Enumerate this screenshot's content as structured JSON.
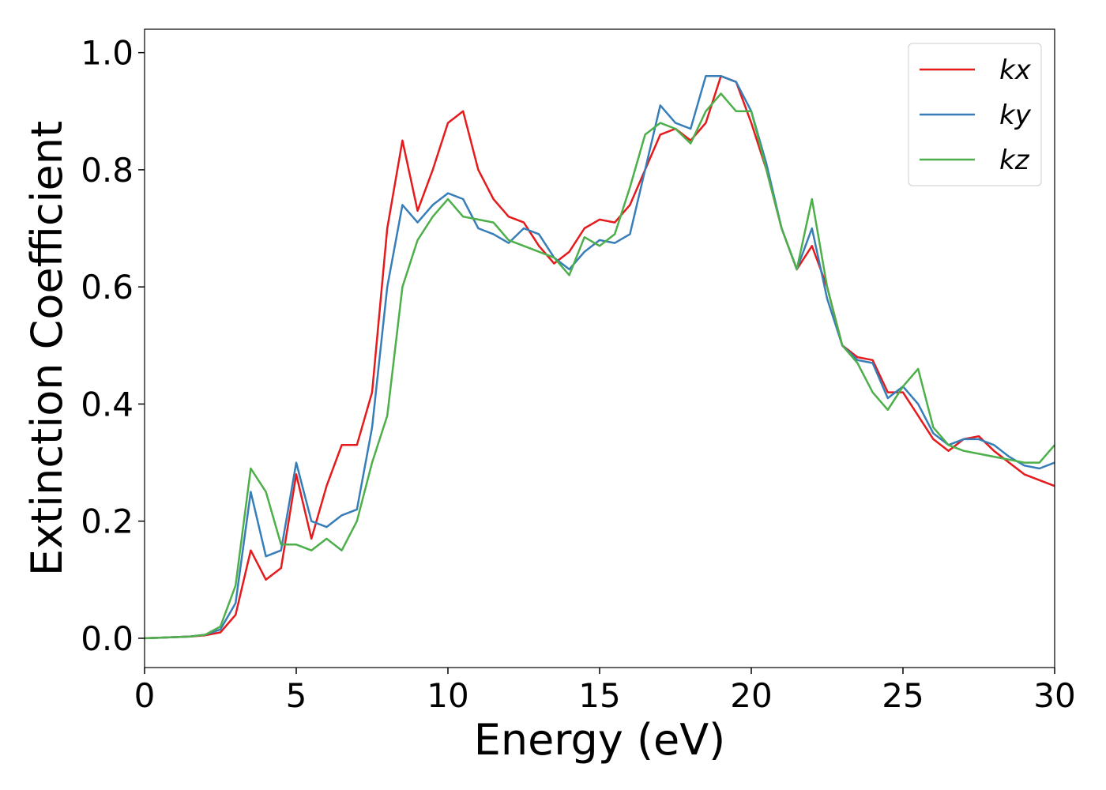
{
  "chart_data": {
    "type": "line",
    "xlabel": "Energy (eV)",
    "ylabel": "Extinction Coefficient",
    "x": [
      0,
      0.5,
      1,
      1.5,
      2,
      2.5,
      3,
      3.5,
      4,
      4.5,
      5,
      5.5,
      6,
      6.5,
      7,
      7.5,
      8,
      8.5,
      9,
      9.5,
      10,
      10.5,
      11,
      11.5,
      12,
      12.5,
      13,
      13.5,
      14,
      14.5,
      15,
      15.5,
      16,
      16.5,
      17,
      17.5,
      18,
      18.5,
      19,
      19.5,
      20,
      20.5,
      21,
      21.5,
      22,
      22.5,
      23,
      23.5,
      24,
      24.5,
      25,
      25.5,
      26,
      26.5,
      27,
      27.5,
      28,
      28.5,
      29,
      29.5,
      30
    ],
    "series": [
      {
        "name": "kx",
        "color": "#e41a1c",
        "values": [
          0,
          0.001,
          0.002,
          0.003,
          0.005,
          0.01,
          0.04,
          0.15,
          0.1,
          0.12,
          0.28,
          0.17,
          0.26,
          0.33,
          0.33,
          0.42,
          0.7,
          0.85,
          0.73,
          0.8,
          0.88,
          0.9,
          0.8,
          0.75,
          0.72,
          0.71,
          0.67,
          0.64,
          0.66,
          0.7,
          0.715,
          0.71,
          0.74,
          0.8,
          0.86,
          0.87,
          0.85,
          0.88,
          0.96,
          0.95,
          0.88,
          0.8,
          0.7,
          0.63,
          0.67,
          0.6,
          0.5,
          0.48,
          0.475,
          0.42,
          0.42,
          0.38,
          0.34,
          0.32,
          0.34,
          0.345,
          0.32,
          0.3,
          0.28,
          0.27,
          0.26
        ]
      },
      {
        "name": "ky",
        "color": "#377eb8",
        "values": [
          0,
          0.001,
          0.002,
          0.003,
          0.006,
          0.015,
          0.06,
          0.25,
          0.14,
          0.15,
          0.3,
          0.2,
          0.19,
          0.21,
          0.22,
          0.36,
          0.6,
          0.74,
          0.71,
          0.74,
          0.76,
          0.75,
          0.7,
          0.69,
          0.675,
          0.7,
          0.69,
          0.65,
          0.63,
          0.66,
          0.68,
          0.675,
          0.69,
          0.8,
          0.91,
          0.88,
          0.87,
          0.96,
          0.96,
          0.95,
          0.9,
          0.81,
          0.7,
          0.63,
          0.7,
          0.58,
          0.5,
          0.475,
          0.47,
          0.41,
          0.43,
          0.4,
          0.35,
          0.33,
          0.34,
          0.34,
          0.33,
          0.31,
          0.295,
          0.29,
          0.3
        ]
      },
      {
        "name": "kz",
        "color": "#4daf4a",
        "values": [
          0,
          0.001,
          0.002,
          0.003,
          0.006,
          0.02,
          0.09,
          0.29,
          0.25,
          0.16,
          0.16,
          0.15,
          0.17,
          0.15,
          0.2,
          0.3,
          0.38,
          0.6,
          0.68,
          0.72,
          0.75,
          0.72,
          0.715,
          0.71,
          0.68,
          0.67,
          0.66,
          0.65,
          0.62,
          0.685,
          0.67,
          0.69,
          0.77,
          0.86,
          0.88,
          0.87,
          0.845,
          0.9,
          0.93,
          0.9,
          0.9,
          0.8,
          0.7,
          0.63,
          0.75,
          0.6,
          0.5,
          0.47,
          0.42,
          0.39,
          0.43,
          0.46,
          0.36,
          0.33,
          0.32,
          0.315,
          0.31,
          0.305,
          0.3,
          0.3,
          0.33
        ]
      }
    ],
    "xlim": [
      0,
      30
    ],
    "xticks": [
      0,
      5,
      10,
      15,
      20,
      25,
      30
    ],
    "ylim": [
      -0.05,
      1.04
    ],
    "yticks": [
      {
        "value": 0,
        "label": "0.0"
      },
      {
        "value": 0.2,
        "label": "0.2"
      },
      {
        "value": 0.4,
        "label": "0.4"
      },
      {
        "value": 0.6,
        "label": "0.6"
      },
      {
        "value": 0.8,
        "label": "0.8"
      },
      {
        "value": 1.0,
        "label": "1.0"
      }
    ],
    "legend": "upper right",
    "grid": false
  }
}
